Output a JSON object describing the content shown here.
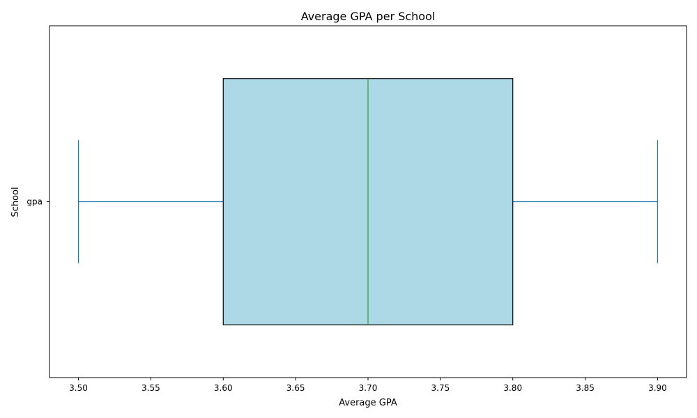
{
  "chart_data": {
    "type": "box",
    "orientation": "horizontal",
    "title": "Average GPA per School",
    "xlabel": "Average GPA",
    "ylabel": "School",
    "xlim": [
      3.48,
      3.92
    ],
    "xticks": [
      "3.50",
      "3.55",
      "3.60",
      "3.65",
      "3.70",
      "3.75",
      "3.80",
      "3.85",
      "3.90"
    ],
    "xtick_values": [
      3.5,
      3.55,
      3.6,
      3.65,
      3.7,
      3.75,
      3.8,
      3.85,
      3.9
    ],
    "categories": [
      "gpa"
    ],
    "series": [
      {
        "whisker_low": 3.5,
        "q1": 3.6,
        "median": 3.7,
        "q3": 3.8,
        "whisker_high": 3.9
      }
    ],
    "grid": false,
    "colors": {
      "box_fill": "#add8e6",
      "box_edge": "#000000",
      "median": "#2ca02c",
      "whisker": "#1f77b4"
    }
  }
}
